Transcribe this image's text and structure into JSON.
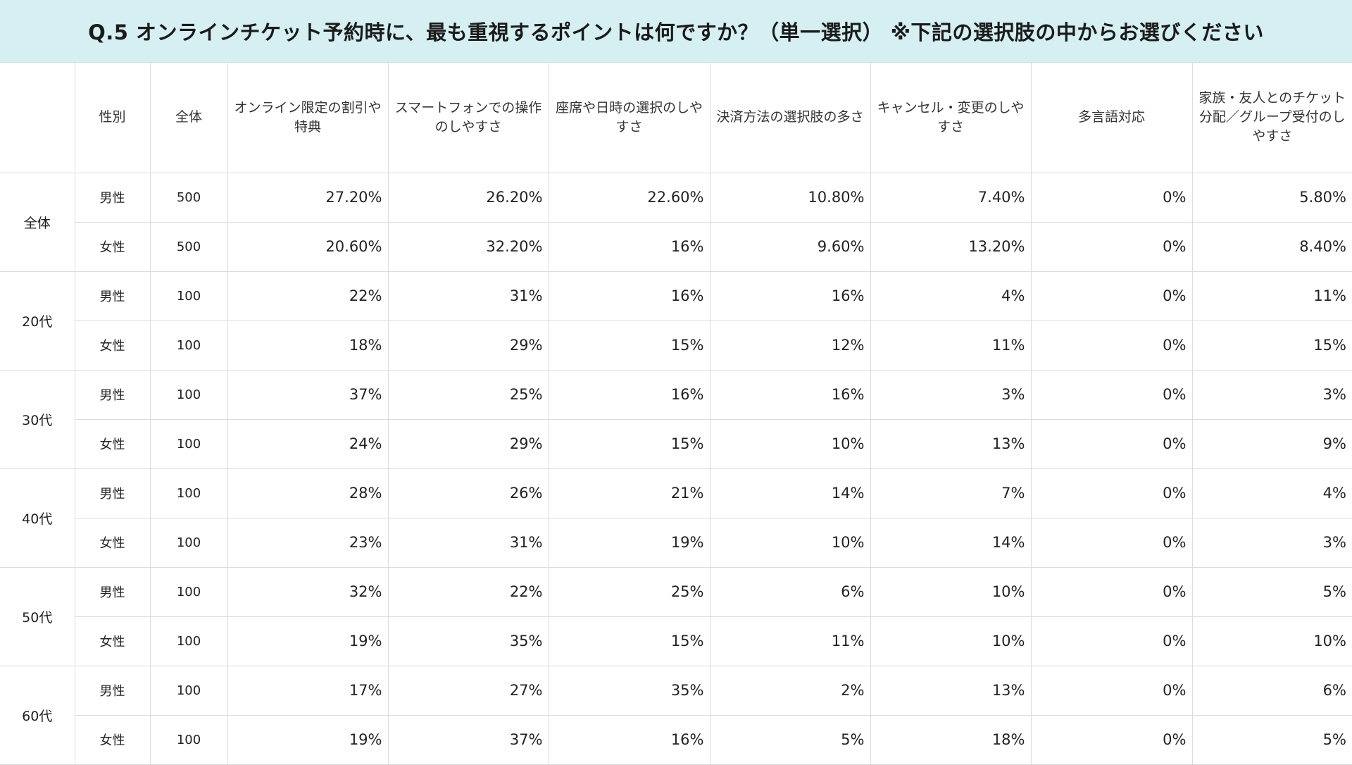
{
  "title": "Q.5 オンラインチケット予約時に、最も重視するポイントは何ですか？（単一選択） ※下記の選択肢の中からお選びください",
  "colors": {
    "title_bg": "#d5eff2",
    "grid": "#dcdcdc"
  },
  "headers": {
    "group": "",
    "gender": "性別",
    "total": "全体",
    "options": [
      "オンライン限定の割引や特典",
      "スマートフォンでの操作のしやすさ",
      "座席や日時の選択のしやすさ",
      "決済方法の選択肢の多さ",
      "キャンセル・変更のしやすさ",
      "多言語対応",
      "家族・友人とのチケット分配／グループ受付のしやすさ"
    ]
  },
  "groups": [
    {
      "label": "全体",
      "rows": [
        {
          "gender": "男性",
          "n": "500",
          "values": [
            "27.20%",
            "26.20%",
            "22.60%",
            "10.80%",
            "7.40%",
            "0%",
            "5.80%"
          ]
        },
        {
          "gender": "女性",
          "n": "500",
          "values": [
            "20.60%",
            "32.20%",
            "16%",
            "9.60%",
            "13.20%",
            "0%",
            "8.40%"
          ]
        }
      ]
    },
    {
      "label": "20代",
      "rows": [
        {
          "gender": "男性",
          "n": "100",
          "values": [
            "22%",
            "31%",
            "16%",
            "16%",
            "4%",
            "0%",
            "11%"
          ]
        },
        {
          "gender": "女性",
          "n": "100",
          "values": [
            "18%",
            "29%",
            "15%",
            "12%",
            "11%",
            "0%",
            "15%"
          ]
        }
      ]
    },
    {
      "label": "30代",
      "rows": [
        {
          "gender": "男性",
          "n": "100",
          "values": [
            "37%",
            "25%",
            "16%",
            "16%",
            "3%",
            "0%",
            "3%"
          ]
        },
        {
          "gender": "女性",
          "n": "100",
          "values": [
            "24%",
            "29%",
            "15%",
            "10%",
            "13%",
            "0%",
            "9%"
          ]
        }
      ]
    },
    {
      "label": "40代",
      "rows": [
        {
          "gender": "男性",
          "n": "100",
          "values": [
            "28%",
            "26%",
            "21%",
            "14%",
            "7%",
            "0%",
            "4%"
          ]
        },
        {
          "gender": "女性",
          "n": "100",
          "values": [
            "23%",
            "31%",
            "19%",
            "10%",
            "14%",
            "0%",
            "3%"
          ]
        }
      ]
    },
    {
      "label": "50代",
      "rows": [
        {
          "gender": "男性",
          "n": "100",
          "values": [
            "32%",
            "22%",
            "25%",
            "6%",
            "10%",
            "0%",
            "5%"
          ]
        },
        {
          "gender": "女性",
          "n": "100",
          "values": [
            "19%",
            "35%",
            "15%",
            "11%",
            "10%",
            "0%",
            "10%"
          ]
        }
      ]
    },
    {
      "label": "60代",
      "rows": [
        {
          "gender": "男性",
          "n": "100",
          "values": [
            "17%",
            "27%",
            "35%",
            "2%",
            "13%",
            "0%",
            "6%"
          ]
        },
        {
          "gender": "女性",
          "n": "100",
          "values": [
            "19%",
            "37%",
            "16%",
            "5%",
            "18%",
            "0%",
            "5%"
          ]
        }
      ]
    }
  ]
}
